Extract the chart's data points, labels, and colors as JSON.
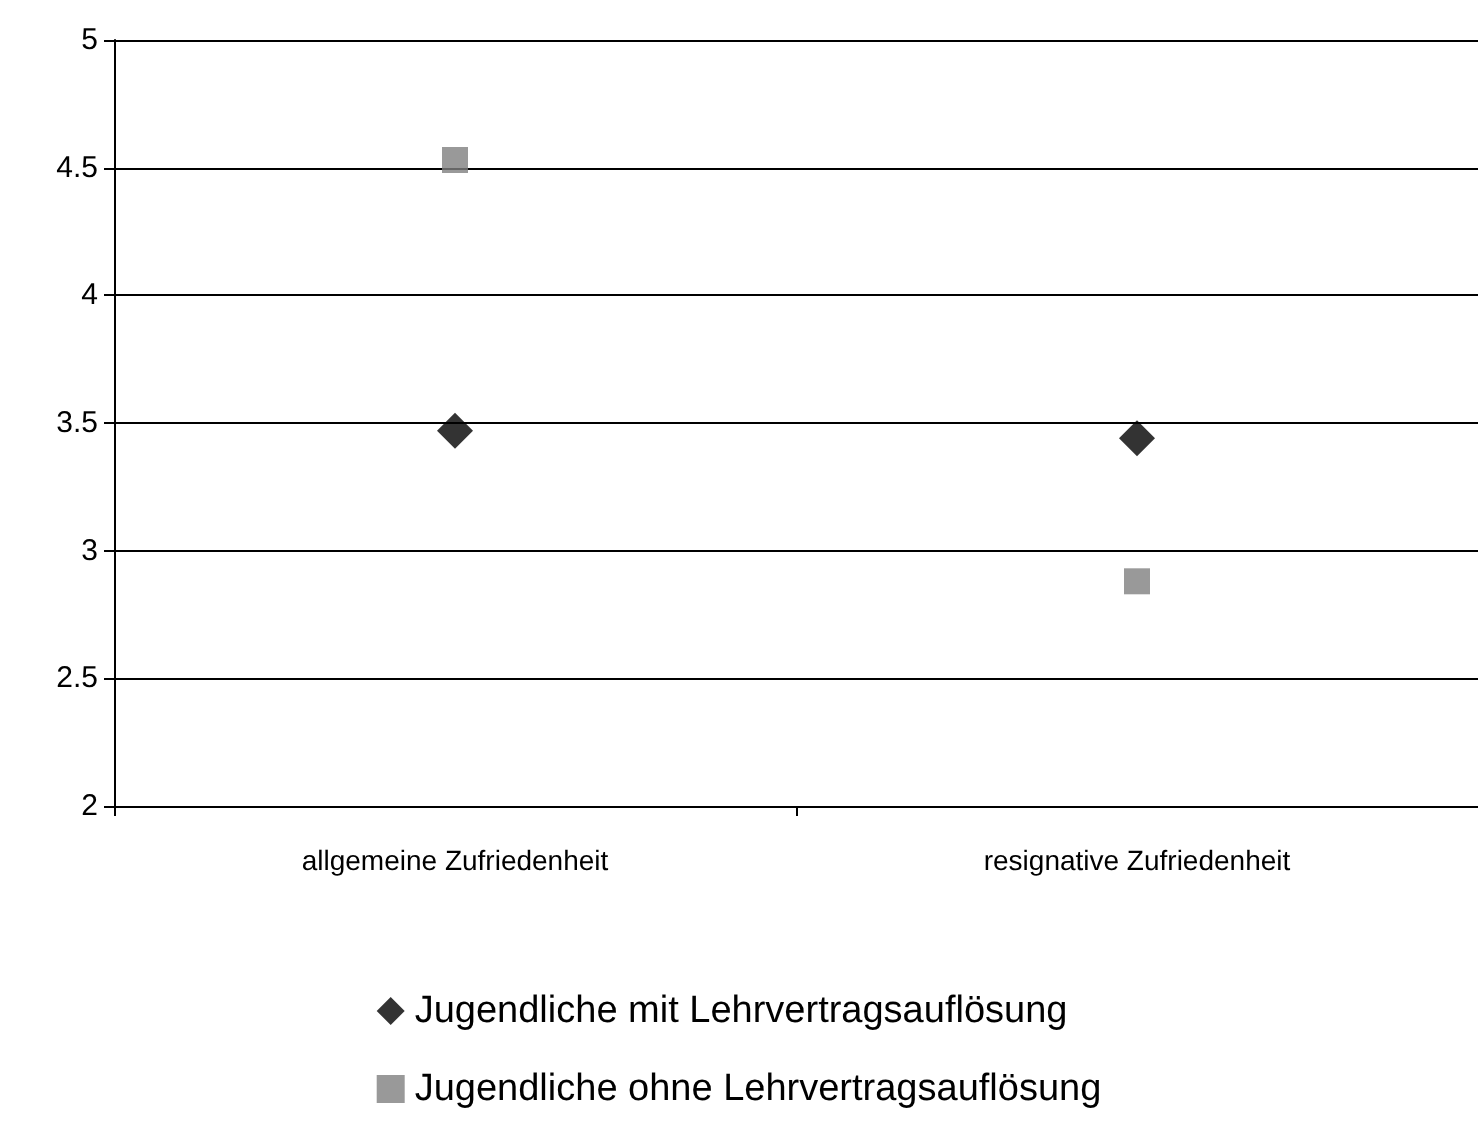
{
  "chart_data": {
    "type": "scatter",
    "categories": [
      "allgemeine Zufriedenheit",
      "resignative Zufriedenheit"
    ],
    "series": [
      {
        "name": "Jugendliche mit Lehrvertragsauflösung",
        "color": "#000000",
        "marker": "diamond",
        "values": [
          3.47,
          3.44
        ]
      },
      {
        "name": "Jugendliche ohne Lehrvertragsauflösung",
        "color": "#808080",
        "marker": "square",
        "values": [
          4.53,
          2.88
        ]
      }
    ],
    "ylim": [
      2,
      5
    ],
    "yticks": [
      2,
      2.5,
      3,
      3.5,
      4,
      4.5,
      5
    ],
    "grid": "y",
    "legend": "bottom"
  }
}
